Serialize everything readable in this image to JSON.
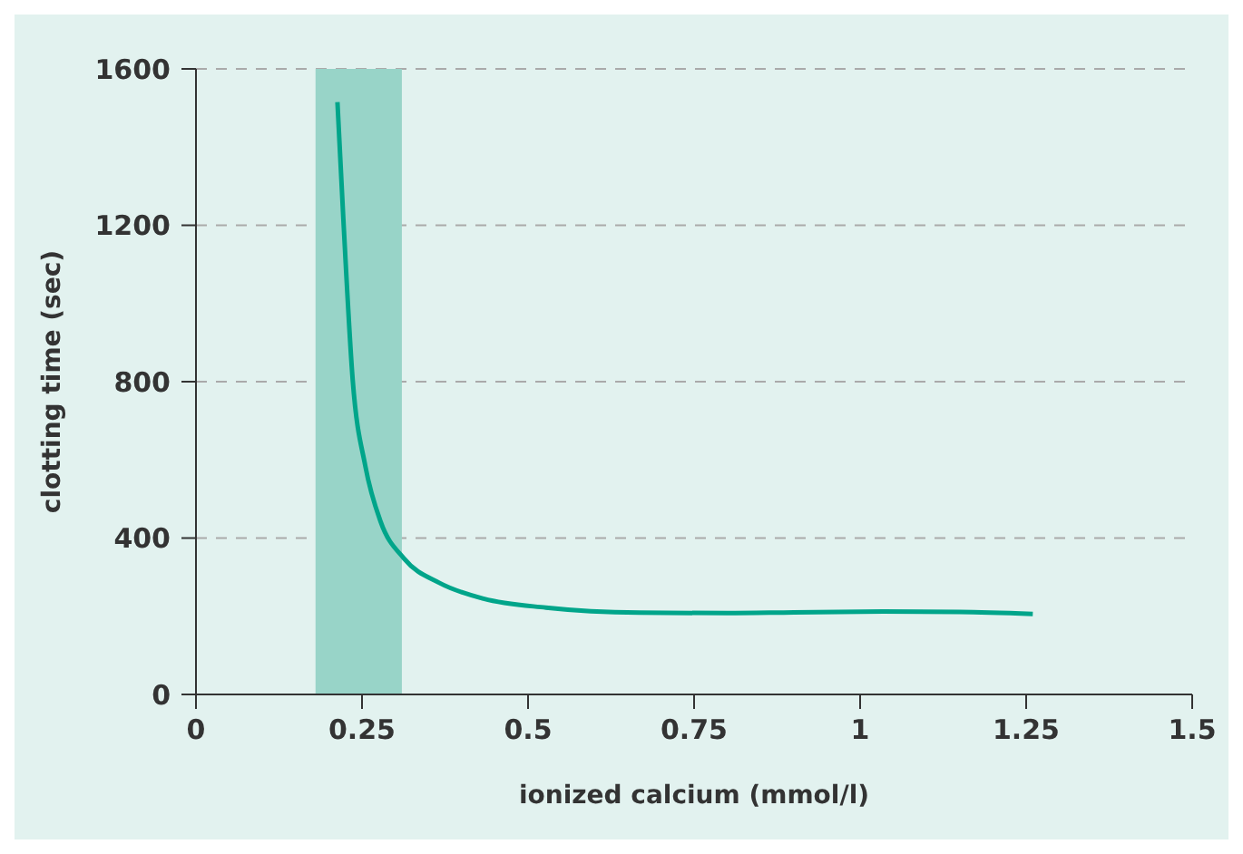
{
  "chart_data": {
    "type": "line",
    "xlabel": "ionized calcium (mmol/l)",
    "ylabel": "clotting time (sec)",
    "x": [
      0.213,
      0.222,
      0.236,
      0.255,
      0.278,
      0.313,
      0.367,
      0.433,
      0.527,
      0.668,
      0.8,
      0.9,
      1.035,
      1.15,
      1.26
    ],
    "series": [
      {
        "color": "#00a58a",
        "values": [
          1515,
          1213,
          804,
          584,
          442,
          348,
          285,
          245,
          222,
          209,
          208,
          210,
          212,
          211,
          206
        ]
      }
    ],
    "xlim": [
      0,
      1.5
    ],
    "xticks": [
      0,
      0.25,
      0.5,
      0.75,
      1,
      1.25,
      1.5
    ],
    "ylim": [
      0,
      1600
    ],
    "yticks": [
      0,
      400,
      800,
      1200,
      1600
    ],
    "grid": "y",
    "marker": "none",
    "line_style": "solid",
    "legend": false,
    "bands": [
      {
        "axis": "x",
        "from": 0.18,
        "to": 0.31,
        "color": "#98d4c8"
      }
    ]
  }
}
